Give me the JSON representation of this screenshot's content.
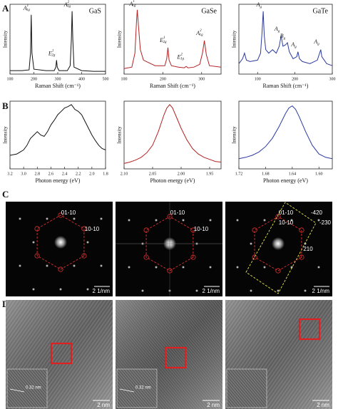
{
  "panel_labels": [
    "A",
    "B",
    "C",
    "D"
  ],
  "chart_data": [
    {
      "type": "line",
      "title": "GaS",
      "x_label": "Raman Shift (cm⁻¹)",
      "y_label": "Intensity",
      "xlim": [
        100,
        500
      ],
      "xticks": [
        100,
        200,
        300,
        400,
        500
      ],
      "ylim": [
        0,
        1
      ],
      "x": [
        100,
        150,
        180,
        186,
        189,
        192,
        200,
        250,
        285,
        292,
        295,
        298,
        305,
        340,
        352,
        357,
        360,
        363,
        368,
        400,
        450,
        500
      ],
      "series": [
        {
          "color": "#111111",
          "values": [
            0.05,
            0.05,
            0.06,
            0.3,
            0.85,
            0.3,
            0.07,
            0.05,
            0.05,
            0.1,
            0.2,
            0.1,
            0.05,
            0.05,
            0.12,
            0.5,
            0.9,
            0.5,
            0.1,
            0.05,
            0.04,
            0.04
          ]
        }
      ],
      "annotations": [
        {
          "text": "A",
          "sup": "1",
          "sub": "1g",
          "x": 189,
          "y": 0.9
        },
        {
          "text": "E",
          "sup": "1",
          "sub": "2g",
          "x": 295,
          "y": 0.25
        },
        {
          "text": "A",
          "sup": "2",
          "sub": "1g",
          "x": 360,
          "y": 0.95
        }
      ]
    },
    {
      "type": "line",
      "title": "GaSe",
      "x_label": "Raman Shift (cm⁻¹)",
      "y_label": "Intensity",
      "xlim": [
        100,
        350
      ],
      "xticks": [
        100,
        200,
        300
      ],
      "ylim": [
        0,
        1
      ],
      "x": [
        100,
        120,
        128,
        132,
        134,
        137,
        142,
        150,
        180,
        205,
        210,
        213,
        216,
        222,
        240,
        255,
        260,
        265,
        280,
        295,
        302,
        307,
        312,
        320,
        350
      ],
      "series": [
        {
          "color": "#b22222",
          "values": [
            0.08,
            0.1,
            0.3,
            0.75,
            0.92,
            0.7,
            0.35,
            0.2,
            0.12,
            0.12,
            0.22,
            0.38,
            0.2,
            0.12,
            0.1,
            0.09,
            0.11,
            0.09,
            0.1,
            0.14,
            0.3,
            0.48,
            0.28,
            0.12,
            0.1
          ]
        }
      ],
      "annotations": [
        {
          "text": "A",
          "sup": "1",
          "sub": "1g",
          "x": 134,
          "y": 0.96
        },
        {
          "text": "E",
          "sup": "1",
          "sub": "2g",
          "x": 213,
          "y": 0.44
        },
        {
          "text": "E",
          "sup": "2",
          "sub": "1g",
          "x": 258,
          "y": 0.2
        },
        {
          "text": "A",
          "sup": "2",
          "sub": "1g",
          "x": 307,
          "y": 0.54
        }
      ]
    },
    {
      "type": "line",
      "title": "GaTe",
      "x_label": "Raman Shift (cm⁻¹)",
      "y_label": "Intensity",
      "xlim": [
        50,
        300
      ],
      "xticks": [
        100,
        200,
        300
      ],
      "ylim": [
        0,
        1
      ],
      "x": [
        50,
        60,
        65,
        70,
        80,
        100,
        108,
        112,
        115,
        118,
        122,
        130,
        140,
        150,
        158,
        163,
        168,
        175,
        180,
        185,
        195,
        205,
        208,
        212,
        220,
        240,
        260,
        266,
        269,
        272,
        285,
        300
      ],
      "series": [
        {
          "color": "#2a3aa0",
          "values": [
            0.15,
            0.22,
            0.3,
            0.2,
            0.18,
            0.2,
            0.3,
            0.6,
            0.9,
            0.55,
            0.35,
            0.3,
            0.35,
            0.3,
            0.4,
            0.55,
            0.4,
            0.42,
            0.45,
            0.32,
            0.22,
            0.25,
            0.32,
            0.22,
            0.18,
            0.15,
            0.2,
            0.3,
            0.35,
            0.25,
            0.15,
            0.12
          ]
        }
      ],
      "annotations": [
        {
          "text": "A",
          "sub": "g",
          "x": 115,
          "y": 0.95
        },
        {
          "text": "A",
          "sub": "g",
          "x": 163,
          "y": 0.6
        },
        {
          "text": "B",
          "sub": "g",
          "x": 178,
          "y": 0.5
        },
        {
          "text": "A",
          "sub": "g",
          "x": 208,
          "y": 0.38
        },
        {
          "text": "A",
          "sub": "g",
          "x": 269,
          "y": 0.42
        }
      ]
    },
    {
      "type": "line",
      "x_label": "Photon energy (eV)",
      "y_label": "Intensity",
      "xlim": [
        3.2,
        1.8
      ],
      "xticks": [
        3.2,
        {
          "value": 3.0,
          "label": "3.0"
        },
        2.8,
        2.6,
        2.4,
        2.2,
        {
          "value": 2.0,
          "label": "2.0"
        },
        1.8
      ],
      "ylim": [
        0,
        1
      ],
      "x": [
        3.2,
        3.1,
        3.0,
        2.95,
        2.9,
        2.85,
        2.8,
        2.75,
        2.7,
        2.65,
        2.6,
        2.55,
        2.5,
        2.45,
        2.4,
        2.35,
        2.3,
        2.25,
        2.2,
        2.15,
        2.1,
        2.05,
        2.0,
        1.95,
        1.9,
        1.85,
        1.8
      ],
      "series": [
        {
          "color": "#111111",
          "values": [
            0.2,
            0.22,
            0.28,
            0.35,
            0.45,
            0.5,
            0.55,
            0.5,
            0.48,
            0.55,
            0.65,
            0.72,
            0.8,
            0.85,
            0.9,
            0.92,
            0.95,
            0.88,
            0.85,
            0.8,
            0.7,
            0.6,
            0.5,
            0.42,
            0.35,
            0.3,
            0.28
          ]
        }
      ]
    },
    {
      "type": "line",
      "x_label": "Photon energy (eV)",
      "y_label": "Intensity",
      "xlim": [
        2.1,
        1.93
      ],
      "xticks": [
        {
          "value": 2.1,
          "label": "2.10"
        },
        2.05,
        {
          "value": 2.0,
          "label": "2.00"
        },
        1.95
      ],
      "ylim": [
        0,
        1
      ],
      "x": [
        2.1,
        2.09,
        2.08,
        2.07,
        2.06,
        2.05,
        2.04,
        2.03,
        2.025,
        2.02,
        2.015,
        2.01,
        2.0,
        1.99,
        1.98,
        1.97,
        1.96,
        1.95,
        1.94,
        1.93
      ],
      "series": [
        {
          "color": "#b22222",
          "values": [
            0.08,
            0.1,
            0.13,
            0.17,
            0.24,
            0.35,
            0.55,
            0.8,
            0.9,
            0.95,
            0.9,
            0.8,
            0.6,
            0.43,
            0.3,
            0.22,
            0.17,
            0.14,
            0.11,
            0.1
          ]
        }
      ]
    },
    {
      "type": "line",
      "x_label": "Photon energy (eV)",
      "y_label": "Intensity",
      "xlim": [
        1.72,
        1.58
      ],
      "xticks": [
        1.72,
        1.68,
        1.64,
        {
          "value": 1.6,
          "label": "1.60"
        }
      ],
      "ylim": [
        0,
        1
      ],
      "x": [
        1.72,
        1.71,
        1.7,
        1.69,
        1.68,
        1.67,
        1.66,
        1.65,
        1.645,
        1.64,
        1.635,
        1.63,
        1.62,
        1.61,
        1.6,
        1.59,
        1.58
      ],
      "series": [
        {
          "color": "#2a3aa0",
          "values": [
            0.15,
            0.17,
            0.2,
            0.25,
            0.33,
            0.45,
            0.62,
            0.82,
            0.9,
            0.93,
            0.88,
            0.78,
            0.55,
            0.35,
            0.22,
            0.17,
            0.15
          ]
        }
      ]
    }
  ],
  "diffraction": [
    {
      "labels": [
        "01-10",
        "10-10"
      ],
      "scale": "2 1/nm"
    },
    {
      "labels": [
        "01-10",
        "10-10"
      ],
      "scale": "2 1/nm"
    },
    {
      "labels": [
        "01-10",
        "10-10",
        "-420",
        "-230",
        "210"
      ],
      "scale": "2 1/nm"
    }
  ],
  "hrtem": [
    {
      "scale": "2 nm",
      "spacing": "0.32 nm"
    },
    {
      "scale": "2 nm",
      "spacing": "0.32 nm"
    },
    {
      "scale": "2 nm"
    }
  ]
}
